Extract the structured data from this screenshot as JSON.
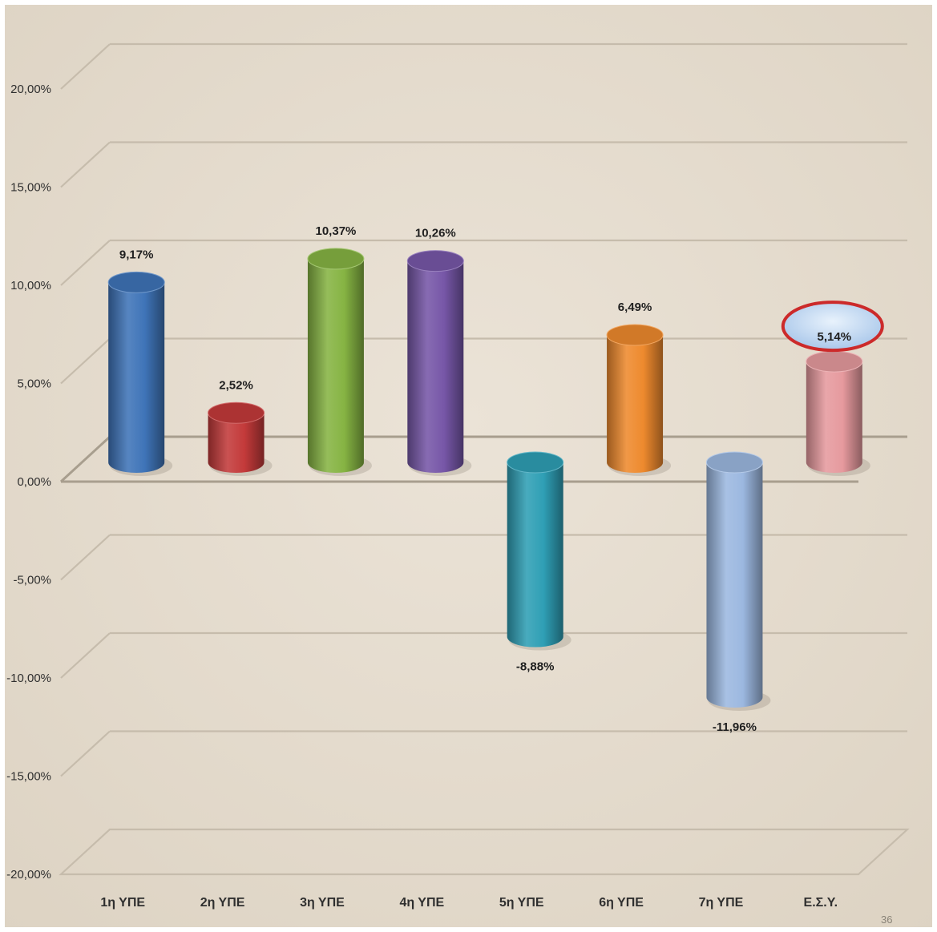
{
  "chart_data": {
    "type": "bar",
    "style": "3d-cylinder",
    "categories": [
      "1η ΥΠΕ",
      "2η ΥΠΕ",
      "3η ΥΠΕ",
      "4η ΥΠΕ",
      "5η ΥΠΕ",
      "6η ΥΠΕ",
      "7η ΥΠΕ",
      "Ε.Σ.Υ."
    ],
    "values": [
      9.17,
      2.52,
      10.37,
      10.26,
      -8.88,
      6.49,
      -11.96,
      5.14
    ],
    "data_labels": [
      "9,17%",
      "2,52%",
      "10,37%",
      "10,26%",
      "-8,88%",
      "6,49%",
      "-11,96%",
      "5,14%"
    ],
    "colors": [
      "#3f74b8",
      "#c33a3a",
      "#86b443",
      "#7757a8",
      "#2f9fb5",
      "#ee8a2e",
      "#9cb8e0",
      "#e69a9e"
    ],
    "highlight_index": 7,
    "highlight_color": "#cc2a2a",
    "ylim": [
      -20,
      20
    ],
    "yticks": [
      20,
      15,
      10,
      5,
      0,
      -5,
      -10,
      -15,
      -20
    ],
    "ytick_labels": [
      "20,00%",
      "15,00%",
      "10,00%",
      "5,00%",
      "0,00%",
      "-5,00%",
      "-10,00%",
      "-15,00%",
      "-20,00%"
    ],
    "grid": true,
    "legend": "none",
    "title": "",
    "xlabel": "",
    "ylabel": ""
  },
  "page_number": "36"
}
